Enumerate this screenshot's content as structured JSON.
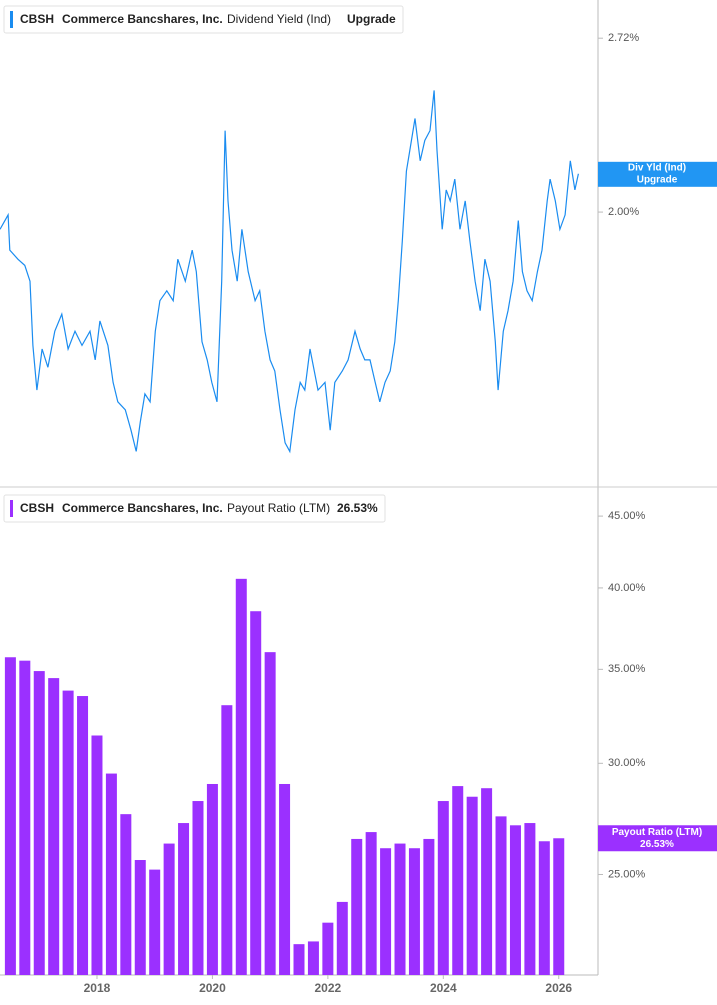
{
  "chart_data": [
    {
      "type": "line",
      "ticker": "CBSH",
      "company": "Commerce Bancshares, Inc.",
      "metric": "Dividend Yield (Ind)",
      "value_label": "Upgrade",
      "tag": "Div Yld (Ind)",
      "color": "#1a8cf0",
      "log_scale": true,
      "x": [
        2016.32,
        2016.46,
        2016.49,
        2016.63,
        2016.75,
        2016.84,
        2016.89,
        2016.96,
        2017.05,
        2017.15,
        2017.27,
        2017.39,
        2017.5,
        2017.62,
        2017.74,
        2017.88,
        2017.97,
        2018.05,
        2018.19,
        2018.28,
        2018.36,
        2018.49,
        2018.59,
        2018.68,
        2018.75,
        2018.83,
        2018.92,
        2019.01,
        2019.09,
        2019.21,
        2019.32,
        2019.4,
        2019.53,
        2019.65,
        2019.72,
        2019.82,
        2019.91,
        2019.99,
        2020.08,
        2020.16,
        2020.22,
        2020.27,
        2020.34,
        2020.43,
        2020.51,
        2020.62,
        2020.74,
        2020.82,
        2020.91,
        2021.0,
        2021.08,
        2021.17,
        2021.26,
        2021.34,
        2021.43,
        2021.52,
        2021.6,
        2021.69,
        2021.83,
        2021.95,
        2022.04,
        2022.12,
        2022.25,
        2022.35,
        2022.47,
        2022.56,
        2022.64,
        2022.73,
        2022.82,
        2022.9,
        2022.99,
        2023.08,
        2023.16,
        2023.22,
        2023.29,
        2023.36,
        2023.42,
        2023.51,
        2023.6,
        2023.68,
        2023.77,
        2023.84,
        2023.89,
        2023.98,
        2024.05,
        2024.12,
        2024.2,
        2024.29,
        2024.38,
        2024.46,
        2024.55,
        2024.64,
        2024.72,
        2024.81,
        2024.9,
        2024.95,
        2025.04,
        2025.12,
        2025.21,
        2025.3,
        2025.37,
        2025.45,
        2025.54,
        2025.63,
        2025.71,
        2025.8,
        2025.85,
        2025.94,
        2026.02,
        2026.11,
        2026.2,
        2026.28,
        2026.34
      ],
      "values": [
        1.94,
        1.99,
        1.87,
        1.84,
        1.82,
        1.77,
        1.58,
        1.46,
        1.57,
        1.52,
        1.62,
        1.67,
        1.57,
        1.62,
        1.58,
        1.62,
        1.54,
        1.65,
        1.58,
        1.48,
        1.43,
        1.41,
        1.36,
        1.31,
        1.38,
        1.45,
        1.43,
        1.62,
        1.71,
        1.74,
        1.71,
        1.84,
        1.77,
        1.87,
        1.8,
        1.59,
        1.54,
        1.48,
        1.43,
        1.77,
        2.31,
        2.04,
        1.87,
        1.77,
        1.94,
        1.8,
        1.71,
        1.74,
        1.62,
        1.54,
        1.51,
        1.41,
        1.33,
        1.31,
        1.41,
        1.48,
        1.46,
        1.57,
        1.46,
        1.48,
        1.36,
        1.48,
        1.51,
        1.54,
        1.62,
        1.57,
        1.54,
        1.54,
        1.48,
        1.43,
        1.48,
        1.51,
        1.59,
        1.71,
        1.9,
        2.15,
        2.23,
        2.36,
        2.19,
        2.27,
        2.31,
        2.48,
        2.23,
        1.94,
        2.08,
        2.04,
        2.12,
        1.94,
        2.04,
        1.9,
        1.77,
        1.68,
        1.84,
        1.77,
        1.59,
        1.46,
        1.62,
        1.68,
        1.77,
        1.97,
        1.8,
        1.74,
        1.71,
        1.8,
        1.87,
        2.04,
        2.12,
        2.04,
        1.94,
        1.99,
        2.19,
        2.08,
        2.14
      ],
      "xlim": [
        2016.32,
        2026.68
      ],
      "ylim": [
        1.23,
        2.91
      ],
      "yticks": [
        {
          "value": 2.72,
          "label": "2.72%"
        },
        {
          "value": 2.0,
          "label": "2.00%"
        }
      ]
    },
    {
      "type": "bar",
      "ticker": "CBSH",
      "company": "Commerce Bancshares, Inc.",
      "metric": "Payout Ratio (LTM)",
      "color": "#9b30ff",
      "log_scale": true,
      "x": [
        2016.5,
        2016.75,
        2017.0,
        2017.25,
        2017.5,
        2017.75,
        2018.0,
        2018.25,
        2018.5,
        2018.75,
        2019.0,
        2019.25,
        2019.5,
        2019.75,
        2020.0,
        2020.25,
        2020.5,
        2020.75,
        2021.0,
        2021.25,
        2021.5,
        2021.75,
        2022.0,
        2022.25,
        2022.5,
        2022.75,
        2023.0,
        2023.25,
        2023.5,
        2023.75,
        2024.0,
        2024.25,
        2024.5,
        2024.75,
        2025.0,
        2025.25,
        2025.5,
        2025.75,
        2026.0
      ],
      "values": [
        35.7,
        35.5,
        34.9,
        34.5,
        33.8,
        33.5,
        31.4,
        29.5,
        27.6,
        25.6,
        25.2,
        26.3,
        27.2,
        28.2,
        29.0,
        33.0,
        40.6,
        38.5,
        36.0,
        29.0,
        22.3,
        22.4,
        23.1,
        23.9,
        26.5,
        26.8,
        26.1,
        26.3,
        26.1,
        26.5,
        28.2,
        28.9,
        28.4,
        28.8,
        27.5,
        27.1,
        27.2,
        26.4,
        26.53
      ],
      "value_labels": [
        null,
        null,
        null,
        null,
        null,
        null,
        null,
        null,
        null,
        null,
        null,
        null,
        null,
        null,
        null,
        null,
        null,
        null,
        null,
        null,
        null,
        null,
        null,
        null,
        null,
        null,
        null,
        null,
        null,
        null,
        null,
        null,
        null,
        null,
        null,
        null,
        null,
        null,
        "26.53%"
      ],
      "xlim": [
        2016.32,
        2026.68
      ],
      "ylim": [
        21.2,
        47.2
      ],
      "yticks": [
        {
          "value": 45,
          "label": "45.00%"
        },
        {
          "value": 40,
          "label": "40.00%"
        },
        {
          "value": 35,
          "label": "35.00%"
        },
        {
          "value": 30,
          "label": "30.00%"
        },
        {
          "value": 25,
          "label": "25.00%"
        }
      ],
      "xticks": [
        2018,
        2020,
        2022,
        2024,
        2026
      ]
    }
  ]
}
